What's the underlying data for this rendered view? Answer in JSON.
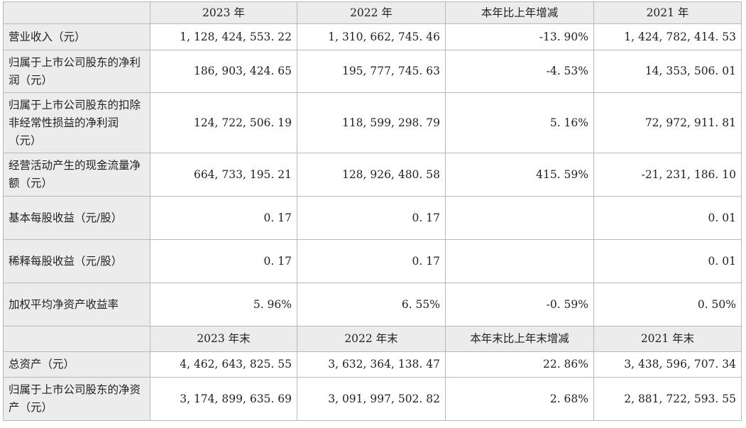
{
  "header1": [
    "2023 年",
    "2022 年",
    "本年比上年增减",
    "2021 年"
  ],
  "rows1": [
    {
      "label": "营业收入（元）",
      "values": [
        "1, 128, 424, 553. 22",
        "1, 310, 662, 745. 46",
        "-13. 90%",
        "1, 424, 782, 414. 53"
      ]
    },
    {
      "label": "归属于上市公司股东的净利润（元）",
      "values": [
        "186, 903, 424. 65",
        "195, 777, 745. 63",
        "-4. 53%",
        "14, 353, 506. 01"
      ]
    },
    {
      "label": "归属于上市公司股东的扣除非经常性损益的净利润（元）",
      "values": [
        "124, 722, 506. 19",
        "118, 599, 298. 79",
        "5. 16%",
        "72, 972, 911. 81"
      ]
    },
    {
      "label": "经营活动产生的现金流量净额（元）",
      "values": [
        "664, 733, 195. 21",
        "128, 926, 480. 58",
        "415. 59%",
        "-21, 231, 186. 10"
      ]
    },
    {
      "label": "基本每股收益（元/股）",
      "values": [
        "0. 17",
        "0. 17",
        "",
        "0. 01"
      ]
    },
    {
      "label": "稀释每股收益（元/股）",
      "values": [
        "0. 17",
        "0. 17",
        "",
        "0. 01"
      ]
    },
    {
      "label": "加权平均净资产收益率",
      "values": [
        "5. 96%",
        "6. 55%",
        "-0. 59%",
        "0. 50%"
      ]
    }
  ],
  "header2": [
    "2023 年末",
    "2022 年末",
    "本年末比上年末增减",
    "2021 年末"
  ],
  "rows2": [
    {
      "label": "总资产（元）",
      "values": [
        "4, 462, 643, 825. 55",
        "3, 632, 364, 138. 47",
        "22. 86%",
        "3, 438, 596, 707. 34"
      ]
    },
    {
      "label": "归属于上市公司股东的净资产（元）",
      "values": [
        "3, 174, 899, 635. 69",
        "3, 091, 997, 502. 82",
        "2. 68%",
        "2, 881, 722, 593. 55"
      ]
    }
  ]
}
